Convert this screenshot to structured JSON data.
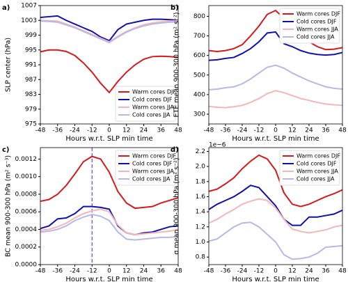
{
  "chart_data": [
    {
      "type": "line",
      "title": "a)",
      "x_label": "Hours w.r.t. SLP min time",
      "y_label": "SLP center (hPa)",
      "x": [
        -48,
        -42,
        -36,
        -30,
        -24,
        -18,
        -12,
        -6,
        0,
        6,
        12,
        18,
        24,
        30,
        36,
        42,
        48
      ],
      "xlim": [
        -48,
        48
      ],
      "xticks": [
        -48,
        -36,
        -24,
        -12,
        0,
        12,
        24,
        36,
        48
      ],
      "ylim": [
        975,
        1007
      ],
      "yticks": [
        975,
        979,
        983,
        987,
        991,
        995,
        999,
        1003,
        1007
      ],
      "legend": "lower right",
      "series": [
        {
          "name": "Warm cores DJF",
          "color": "#d7191c",
          "values": [
            994.5,
            995,
            995,
            994.6,
            993.5,
            991.5,
            989,
            986,
            983.5,
            986.5,
            989,
            991,
            992.5,
            993.2,
            993.3,
            993.2,
            993
          ]
        },
        {
          "name": "Cold cores DJF",
          "color": "#1010b0",
          "values": [
            1003.8,
            1004,
            1004.2,
            1003,
            1002,
            1001,
            1000,
            998.5,
            997.5,
            1000.5,
            1002,
            1002.5,
            1003,
            1003.3,
            1003.3,
            1003.2,
            1003
          ]
        },
        {
          "name": "Warm cores JJA",
          "color": "#f4b6b6",
          "values": [
            1003,
            1002.9,
            1002.8,
            1002,
            1001.2,
            1000.2,
            999.2,
            998.2,
            997.2,
            998.7,
            1000,
            1001,
            1001.8,
            1002.3,
            1002.6,
            1002.8,
            1002.9
          ]
        },
        {
          "name": "Cold cores JJA",
          "color": "#b8b8e8",
          "values": [
            1002.8,
            1002.7,
            1002.5,
            1001.8,
            1001,
            1000,
            999,
            998,
            997,
            998.5,
            999.8,
            1000.8,
            1001.5,
            1002,
            1002.3,
            1002.5,
            1002.6
          ]
        }
      ]
    },
    {
      "type": "line",
      "title": "b)",
      "x_label": "Hours w.r.t. SLP min time",
      "y_label": "ETE mean 900-300 hPa (m² s⁻²)",
      "x": [
        -48,
        -42,
        -36,
        -30,
        -24,
        -18,
        -12,
        -6,
        0,
        6,
        12,
        18,
        24,
        30,
        36,
        42,
        48
      ],
      "xlim": [
        -48,
        48
      ],
      "xticks": [
        -48,
        -36,
        -24,
        -12,
        0,
        12,
        24,
        36,
        48
      ],
      "ylim": [
        250,
        855
      ],
      "yticks": [
        300,
        400,
        500,
        600,
        700,
        800
      ],
      "legend": "upper right",
      "series": [
        {
          "name": "Warm cores DJF",
          "color": "#d7191c",
          "values": [
            625,
            620,
            625,
            635,
            655,
            700,
            750,
            810,
            830,
            790,
            740,
            700,
            670,
            645,
            630,
            632,
            640
          ]
        },
        {
          "name": "Cold cores DJF",
          "color": "#1010b0",
          "values": [
            575,
            578,
            585,
            590,
            610,
            635,
            670,
            715,
            720,
            660,
            645,
            625,
            612,
            605,
            602,
            605,
            615
          ]
        },
        {
          "name": "Warm cores JJA",
          "color": "#f4b6b6",
          "values": [
            340,
            335,
            333,
            338,
            345,
            360,
            380,
            405,
            420,
            410,
            395,
            380,
            370,
            360,
            352,
            348,
            345
          ]
        },
        {
          "name": "Cold cores JJA",
          "color": "#b8b8e8",
          "values": [
            425,
            428,
            435,
            440,
            455,
            480,
            510,
            540,
            550,
            535,
            510,
            490,
            470,
            455,
            440,
            432,
            428
          ]
        }
      ]
    },
    {
      "type": "line",
      "title": "c)",
      "x_label": "Hours w.r.t. SLP min time",
      "y_label": "BC mean 900-300 hPa (m² s⁻³)",
      "x": [
        -48,
        -42,
        -36,
        -30,
        -24,
        -18,
        -12,
        -6,
        0,
        6,
        12,
        18,
        24,
        30,
        36,
        42,
        48
      ],
      "xlim": [
        -48,
        48
      ],
      "xticks": [
        -48,
        -36,
        -24,
        -12,
        0,
        12,
        24,
        36,
        48
      ],
      "ylim": [
        0,
        0.00133
      ],
      "yticks": [
        {
          "value": 0,
          "label": "0.0000"
        },
        {
          "value": 0.0002,
          "label": "0.0002"
        },
        {
          "value": 0.0004,
          "label": "0.0004"
        },
        {
          "value": 0.0006,
          "label": "0.0006"
        },
        {
          "value": 0.0008,
          "label": "0.0008"
        },
        {
          "value": 0.001,
          "label": "0.0010"
        },
        {
          "value": 0.0012,
          "label": "0.0012"
        }
      ],
      "legend": "upper right",
      "vline": {
        "x": -12,
        "color": "#6a3fd6"
      },
      "series": [
        {
          "name": "Warm cores DJF",
          "color": "#d7191c",
          "values": [
            0.00072,
            0.00074,
            0.0008,
            0.0009,
            0.00103,
            0.00117,
            0.00123,
            0.0012,
            0.00105,
            0.00083,
            0.0007,
            0.00064,
            0.00065,
            0.00066,
            0.0007,
            0.00073,
            0.00076
          ]
        },
        {
          "name": "Cold cores DJF",
          "color": "#1010b0",
          "values": [
            0.00041,
            0.00044,
            0.00052,
            0.00053,
            0.00058,
            0.00066,
            0.00066,
            0.00065,
            0.00063,
            0.00044,
            0.00036,
            0.00034,
            0.00036,
            0.00037,
            0.0004,
            0.00043,
            0.00044
          ]
        },
        {
          "name": "Warm cores JJA",
          "color": "#f4b6b6",
          "values": [
            0.00039,
            0.0004,
            0.00043,
            0.00047,
            0.00053,
            0.00058,
            0.00061,
            0.00063,
            0.0006,
            0.00045,
            0.00036,
            0.00034,
            0.00035,
            0.00036,
            0.00037,
            0.00038,
            0.0004
          ]
        },
        {
          "name": "Cold cores JJA",
          "color": "#b8b8e8",
          "values": [
            0.00037,
            0.00038,
            0.0004,
            0.00044,
            0.0005,
            0.00054,
            0.00057,
            0.00055,
            0.0005,
            0.00037,
            0.00029,
            0.00028,
            0.00029,
            0.0003,
            0.00031,
            0.00031,
            0.00032
          ]
        }
      ]
    },
    {
      "type": "line",
      "title": "d)",
      "x_label": "Hours w.r.t. SLP min time",
      "y_label": "σ mean 900-300 hPa (m² s⁻²)",
      "offset_text": "1e−6",
      "x": [
        -48,
        -42,
        -36,
        -30,
        -24,
        -18,
        -12,
        -6,
        0,
        6,
        12,
        18,
        24,
        30,
        36,
        42,
        48
      ],
      "xlim": [
        -48,
        48
      ],
      "xticks": [
        -48,
        -36,
        -24,
        -12,
        0,
        12,
        24,
        36,
        48
      ],
      "ylim": [
        0.7,
        2.25
      ],
      "yticks": [
        0.8,
        {
          "value": 1,
          "label": "1.0"
        },
        1.2,
        1.4,
        1.6,
        1.8,
        {
          "value": 2,
          "label": "2.0"
        },
        2.2
      ],
      "legend": "upper right",
      "series": [
        {
          "name": "Warm cores DJF",
          "color": "#d7191c",
          "values": [
            1.67,
            1.7,
            1.77,
            1.85,
            1.97,
            2.07,
            2.15,
            2.1,
            1.95,
            1.65,
            1.5,
            1.47,
            1.5,
            1.55,
            1.6,
            1.64,
            1.69
          ]
        },
        {
          "name": "Cold cores DJF",
          "color": "#1010b0",
          "values": [
            1.43,
            1.5,
            1.55,
            1.6,
            1.67,
            1.75,
            1.72,
            1.6,
            1.48,
            1.3,
            1.22,
            1.22,
            1.33,
            1.33,
            1.35,
            1.37,
            1.42
          ]
        },
        {
          "name": "Warm cores JJA",
          "color": "#f4b6b6",
          "values": [
            1.25,
            1.3,
            1.37,
            1.43,
            1.5,
            1.54,
            1.57,
            1.55,
            1.45,
            1.3,
            1.17,
            1.14,
            1.12,
            1.14,
            1.16,
            1.2,
            1.22
          ]
        },
        {
          "name": "Cold cores JJA",
          "color": "#b8b8e8",
          "values": [
            1.01,
            1.04,
            1.12,
            1.2,
            1.25,
            1.26,
            1.2,
            1.1,
            1.0,
            0.83,
            0.77,
            0.78,
            0.8,
            0.85,
            0.93,
            0.94,
            0.95
          ]
        }
      ]
    }
  ]
}
